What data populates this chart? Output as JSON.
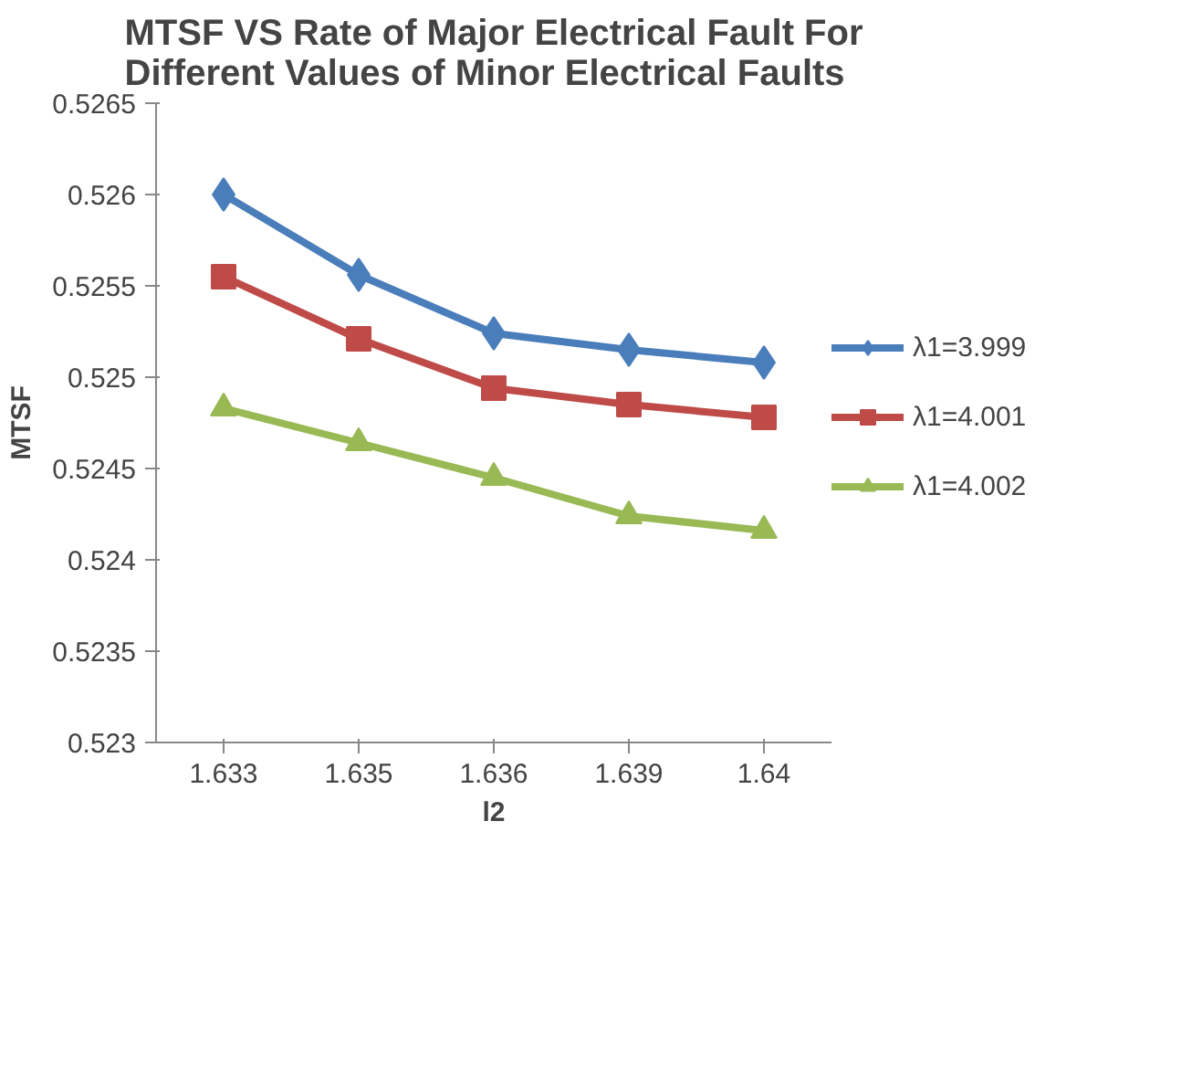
{
  "chart_data": {
    "type": "line",
    "title": "MTSF VS Rate of Major Electrical Fault For Different Values of Minor Electrical Faults",
    "xlabel": "l2",
    "ylabel": "MTSF",
    "categories": [
      "1.633",
      "1.635",
      "1.636",
      "1.639",
      "1.64"
    ],
    "ylim": [
      0.523,
      0.5265
    ],
    "yticks": [
      0.523,
      0.5235,
      0.524,
      0.5245,
      0.525,
      0.5255,
      0.526,
      0.5265
    ],
    "grid": false,
    "legend": "right",
    "line_style": "solid",
    "series": [
      {
        "name": "λ1=3.999",
        "color": "#4a7ebb",
        "marker": "diamond",
        "values": [
          0.526,
          0.52556,
          0.52524,
          0.52515,
          0.52508
        ]
      },
      {
        "name": "λ1=4.001",
        "color": "#be4b48",
        "marker": "square",
        "values": [
          0.52555,
          0.52521,
          0.52494,
          0.52485,
          0.52478
        ]
      },
      {
        "name": "λ1=4.002",
        "color": "#98b954",
        "marker": "triangle",
        "values": [
          0.52483,
          0.52464,
          0.52445,
          0.52424,
          0.52416
        ]
      }
    ]
  }
}
